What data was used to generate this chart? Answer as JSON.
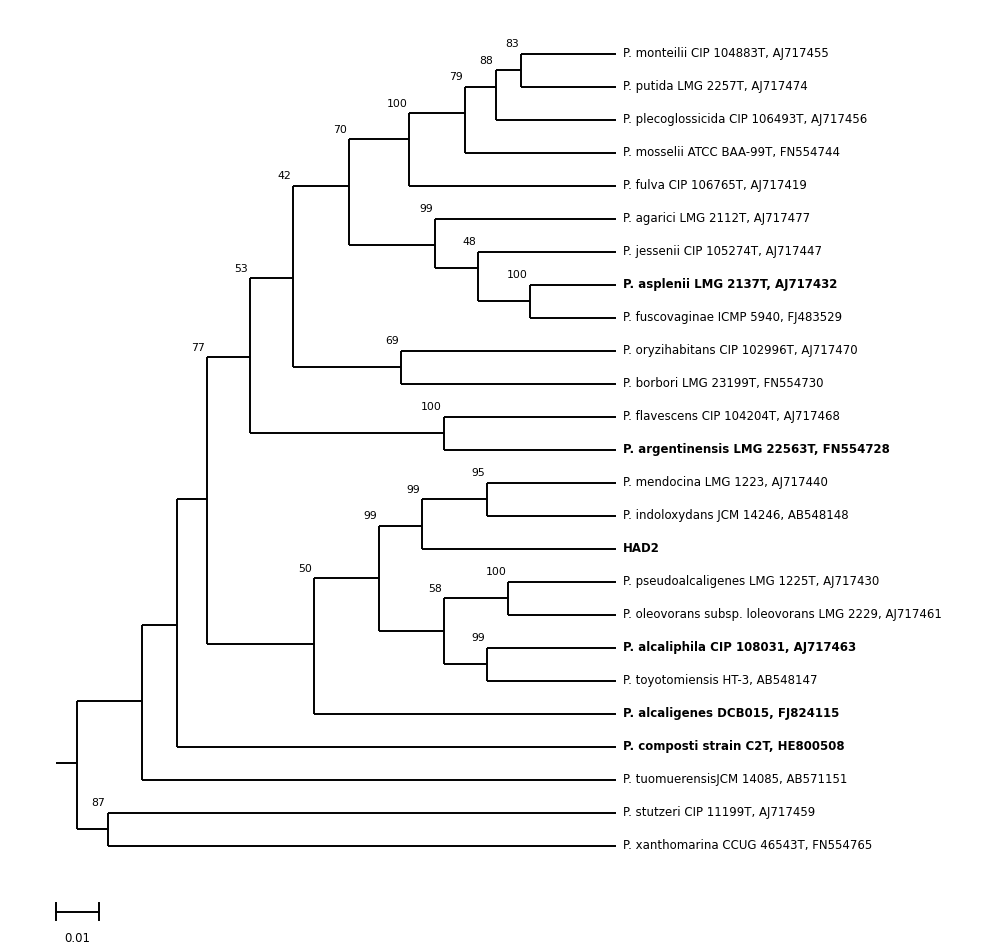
{
  "figsize": [
    10.0,
    9.48
  ],
  "dpi": 100,
  "background": "#ffffff",
  "taxa": [
    "P. monteilii CIP 104883T, AJ717455",
    "P. putida LMG 2257T, AJ717474",
    "P. plecoglossicida CIP 106493T, AJ717456",
    "P. mosselii ATCC BAA-99T, FN554744",
    "P. fulva CIP 106765T, AJ717419",
    "P. agarici LMG 2112T, AJ717477",
    "P. jessenii CIP 105274T, AJ717447",
    "P. asplenii LMG 2137T, AJ717432",
    "P. fuscovaginae ICMP 5940, FJ483529",
    "P. oryzihabitans CIP 102996T, AJ717470",
    "P. borbori LMG 23199T, FN554730",
    "P. flavescens CIP 104204T, AJ717468",
    "P. argentinensis LMG 22563T, FN554728",
    "P. mendocina LMG 1223, AJ717440",
    "P. indoloxydans JCM 14246, AB548148",
    "HAD2",
    "P. pseudoalcaligenes LMG 1225T, AJ717430",
    "P. oleovorans subsp. loleovorans LMG 2229, AJ717461",
    "P. alcaliphila CIP 108031, AJ717463",
    "P. toyotomiensis HT-3, AB548147",
    "P. alcaligenes DCB015, FJ824115",
    "P. composti strain C2T, HE800508",
    "P. tuomuerensisJCM 14085, AB571151",
    "P. stutzeri CIP 11199T, AJ717459",
    "P. xanthomarina CCUG 46543T, FN554765"
  ],
  "bold_taxa": [
    "P. asplenii LMG 2137T, AJ717432",
    "P. argentinensis LMG 22563T, FN554728",
    "P. alcaliphila CIP 108031, AJ717463",
    "P. alcaligenes DCB015, FJ824115",
    "P. composti strain C2T, HE800508",
    "HAD2"
  ],
  "line_color": "#000000",
  "line_width": 1.4,
  "font_size": 8.5
}
